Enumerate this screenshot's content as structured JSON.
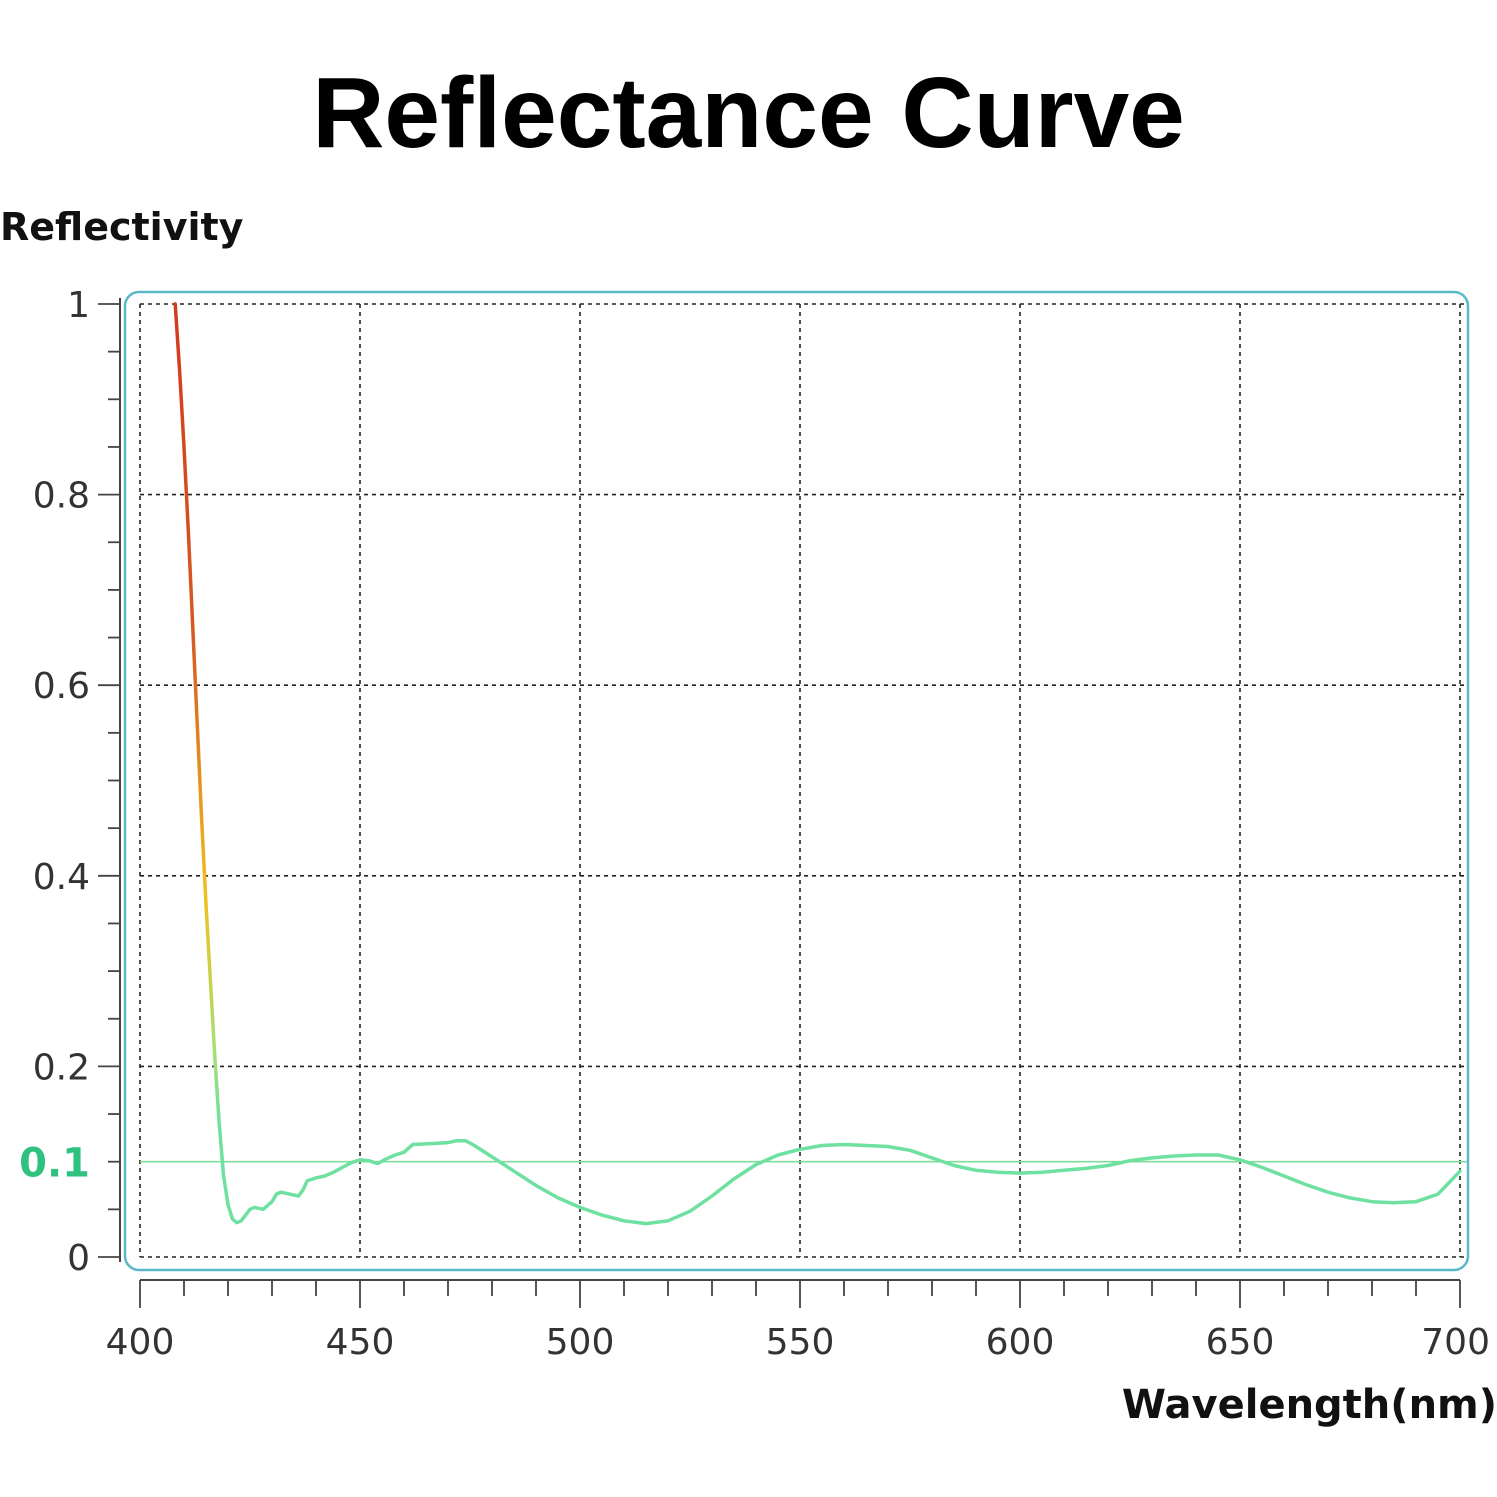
{
  "chart_data": {
    "type": "line",
    "title": "Reflectance Curve",
    "xlabel": "Wavelength(nm)",
    "ylabel": "Reflectivity",
    "xlim": [
      400,
      700
    ],
    "ylim": [
      0,
      1
    ],
    "x_ticks": [
      400,
      450,
      500,
      550,
      600,
      650,
      700
    ],
    "x_tick_labels": [
      "400",
      "450",
      "500",
      "550",
      "600",
      "650",
      "700"
    ],
    "y_ticks": [
      0,
      0.2,
      0.4,
      0.6,
      0.8,
      1
    ],
    "y_tick_labels": [
      "0",
      "0.2",
      "0.4",
      "0.6",
      "0.8",
      "1"
    ],
    "highlight_tick": {
      "value": 0.1,
      "label": "0.1",
      "color": "#2ec27e"
    },
    "reference_line": {
      "y": 0.1,
      "color": "#7fdc9a"
    },
    "grid": true,
    "frame_color": "#5ab8c8",
    "line_colors": {
      "high": "#d43a1c",
      "mid": "#f0c020",
      "low": "#6ee0a0"
    },
    "series": [
      {
        "name": "Reflectivity",
        "x": [
          408,
          409,
          410,
          411,
          412,
          413,
          414,
          415,
          416,
          417,
          418,
          419,
          420,
          421,
          422,
          423,
          424,
          425,
          426,
          428,
          430,
          431,
          432,
          434,
          436,
          437,
          438,
          440,
          442,
          444,
          446,
          448,
          450,
          452,
          454,
          456,
          458,
          460,
          462,
          466,
          470,
          472,
          474,
          476,
          480,
          485,
          490,
          495,
          500,
          505,
          510,
          515,
          520,
          525,
          530,
          535,
          540,
          545,
          550,
          555,
          560,
          565,
          570,
          575,
          580,
          585,
          590,
          595,
          600,
          605,
          610,
          615,
          620,
          625,
          630,
          635,
          640,
          645,
          650,
          655,
          660,
          665,
          670,
          675,
          680,
          685,
          690,
          695,
          700
        ],
        "values": [
          1.0,
          0.93,
          0.85,
          0.76,
          0.66,
          0.56,
          0.46,
          0.37,
          0.29,
          0.21,
          0.14,
          0.085,
          0.055,
          0.04,
          0.036,
          0.038,
          0.044,
          0.05,
          0.052,
          0.05,
          0.058,
          0.066,
          0.068,
          0.066,
          0.064,
          0.07,
          0.08,
          0.083,
          0.085,
          0.089,
          0.094,
          0.099,
          0.102,
          0.101,
          0.098,
          0.103,
          0.107,
          0.11,
          0.118,
          0.119,
          0.12,
          0.122,
          0.122,
          0.117,
          0.105,
          0.09,
          0.075,
          0.062,
          0.052,
          0.044,
          0.038,
          0.035,
          0.038,
          0.048,
          0.064,
          0.082,
          0.097,
          0.107,
          0.113,
          0.117,
          0.118,
          0.117,
          0.116,
          0.112,
          0.104,
          0.096,
          0.091,
          0.089,
          0.088,
          0.089,
          0.091,
          0.093,
          0.096,
          0.101,
          0.104,
          0.106,
          0.107,
          0.107,
          0.102,
          0.094,
          0.085,
          0.076,
          0.068,
          0.062,
          0.058,
          0.057,
          0.058,
          0.066,
          0.09
        ]
      }
    ]
  }
}
